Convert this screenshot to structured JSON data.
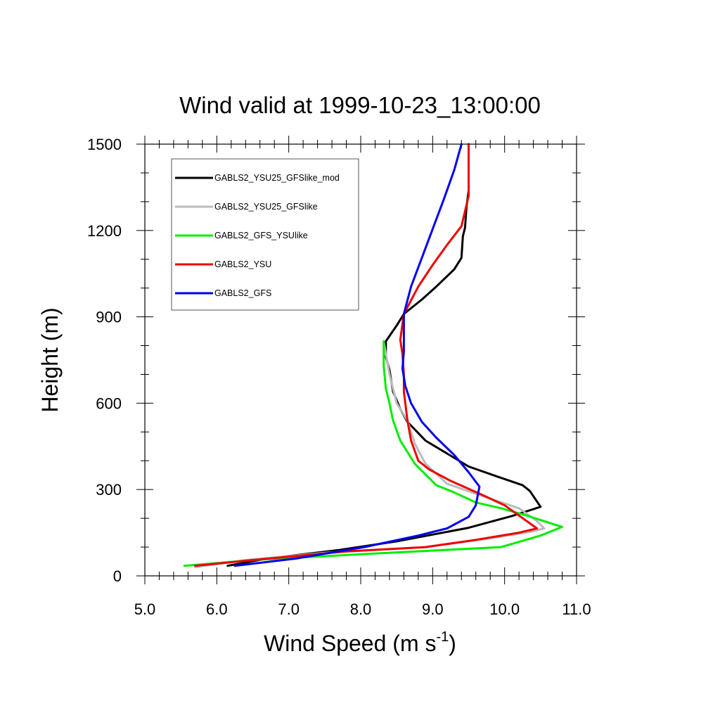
{
  "chart_data": {
    "type": "line",
    "title": "Wind valid at 1999-10-23_13:00:00",
    "xlabel": {
      "main": "Wind Speed (m s",
      "superscript": "-1",
      "close": ")"
    },
    "ylabel": "Height (m)",
    "xlim": [
      5.0,
      11.0
    ],
    "ylim": [
      0,
      1500
    ],
    "x_ticks": [
      "5.0",
      "6.0",
      "7.0",
      "8.0",
      "9.0",
      "10.0",
      "11.0"
    ],
    "y_ticks": [
      "0",
      "300",
      "600",
      "900",
      "1200",
      "1500"
    ],
    "legend_placement": "top-left",
    "grid": false,
    "series": [
      {
        "name": "GABLS2_YSU25_GFSlike_mod",
        "color": "#000000",
        "points": [
          [
            6.15,
            35
          ],
          [
            6.7,
            60
          ],
          [
            7.7,
            90
          ],
          [
            8.5,
            120
          ],
          [
            9.5,
            167
          ],
          [
            10.1,
            208
          ],
          [
            10.5,
            240
          ],
          [
            10.35,
            295
          ],
          [
            10.25,
            315
          ],
          [
            9.9,
            345
          ],
          [
            9.5,
            380
          ],
          [
            9.2,
            425
          ],
          [
            8.9,
            470
          ],
          [
            8.65,
            535
          ],
          [
            8.55,
            580
          ],
          [
            8.45,
            640
          ],
          [
            8.4,
            715
          ],
          [
            8.35,
            760
          ],
          [
            8.35,
            800
          ],
          [
            8.35,
            815
          ],
          [
            8.5,
            870
          ],
          [
            8.6,
            910
          ],
          [
            8.85,
            960
          ],
          [
            9.05,
            1005
          ],
          [
            9.3,
            1065
          ],
          [
            9.4,
            1105
          ],
          [
            9.42,
            1180
          ],
          [
            9.45,
            1210
          ],
          [
            9.47,
            1280
          ],
          [
            9.5,
            1340
          ],
          [
            9.5,
            1500
          ]
        ]
      },
      {
        "name": "GABLS2_YSU25_GFSlike",
        "color": "#bbbbbb",
        "points": [
          [
            5.7,
            30
          ],
          [
            6.4,
            55
          ],
          [
            7.5,
            80
          ],
          [
            8.9,
            100
          ],
          [
            9.8,
            130
          ],
          [
            10.4,
            155
          ],
          [
            10.55,
            165
          ],
          [
            10.45,
            190
          ],
          [
            10.2,
            235
          ],
          [
            9.6,
            285
          ],
          [
            9.2,
            320
          ],
          [
            8.9,
            390
          ],
          [
            8.75,
            460
          ],
          [
            8.65,
            540
          ],
          [
            8.5,
            600
          ],
          [
            8.4,
            700
          ],
          [
            8.32,
            815
          ]
        ]
      },
      {
        "name": "GABLS2_GFS_YSUlike",
        "color": "#00ee00",
        "points": [
          [
            5.55,
            35
          ],
          [
            6.5,
            55
          ],
          [
            8.0,
            75
          ],
          [
            9.95,
            100
          ],
          [
            10.5,
            140
          ],
          [
            10.8,
            170
          ],
          [
            10.3,
            210
          ],
          [
            9.95,
            235
          ],
          [
            9.6,
            255
          ],
          [
            9.3,
            290
          ],
          [
            9.05,
            315
          ],
          [
            8.75,
            390
          ],
          [
            8.55,
            470
          ],
          [
            8.45,
            540
          ],
          [
            8.4,
            600
          ],
          [
            8.35,
            650
          ],
          [
            8.32,
            730
          ],
          [
            8.32,
            815
          ]
        ]
      },
      {
        "name": "GABLS2_YSU",
        "color": "#ee0000",
        "points": [
          [
            5.7,
            35
          ],
          [
            6.5,
            55
          ],
          [
            7.8,
            85
          ],
          [
            8.9,
            100
          ],
          [
            9.6,
            125
          ],
          [
            10.2,
            150
          ],
          [
            10.45,
            165
          ],
          [
            10.0,
            245
          ],
          [
            9.7,
            280
          ],
          [
            9.25,
            330
          ],
          [
            8.95,
            370
          ],
          [
            8.8,
            400
          ],
          [
            8.7,
            470
          ],
          [
            8.65,
            540
          ],
          [
            8.6,
            640
          ],
          [
            8.6,
            700
          ],
          [
            8.58,
            770
          ],
          [
            8.55,
            820
          ],
          [
            8.6,
            910
          ],
          [
            8.8,
            1005
          ],
          [
            9.0,
            1080
          ],
          [
            9.2,
            1150
          ],
          [
            9.4,
            1215
          ],
          [
            9.5,
            1320
          ],
          [
            9.5,
            1500
          ]
        ]
      },
      {
        "name": "GABLS2_GFS",
        "color": "#0000ee",
        "points": [
          [
            6.25,
            35
          ],
          [
            7.1,
            60
          ],
          [
            8.05,
            100
          ],
          [
            8.8,
            140
          ],
          [
            9.2,
            165
          ],
          [
            9.5,
            205
          ],
          [
            9.6,
            245
          ],
          [
            9.65,
            310
          ],
          [
            9.5,
            360
          ],
          [
            9.3,
            420
          ],
          [
            9.05,
            480
          ],
          [
            8.85,
            535
          ],
          [
            8.7,
            600
          ],
          [
            8.62,
            660
          ],
          [
            8.58,
            720
          ],
          [
            8.6,
            780
          ],
          [
            8.6,
            820
          ],
          [
            8.6,
            910
          ],
          [
            8.7,
            1005
          ],
          [
            8.85,
            1105
          ],
          [
            9.0,
            1205
          ],
          [
            9.15,
            1305
          ],
          [
            9.3,
            1410
          ],
          [
            9.4,
            1500
          ]
        ]
      }
    ]
  }
}
